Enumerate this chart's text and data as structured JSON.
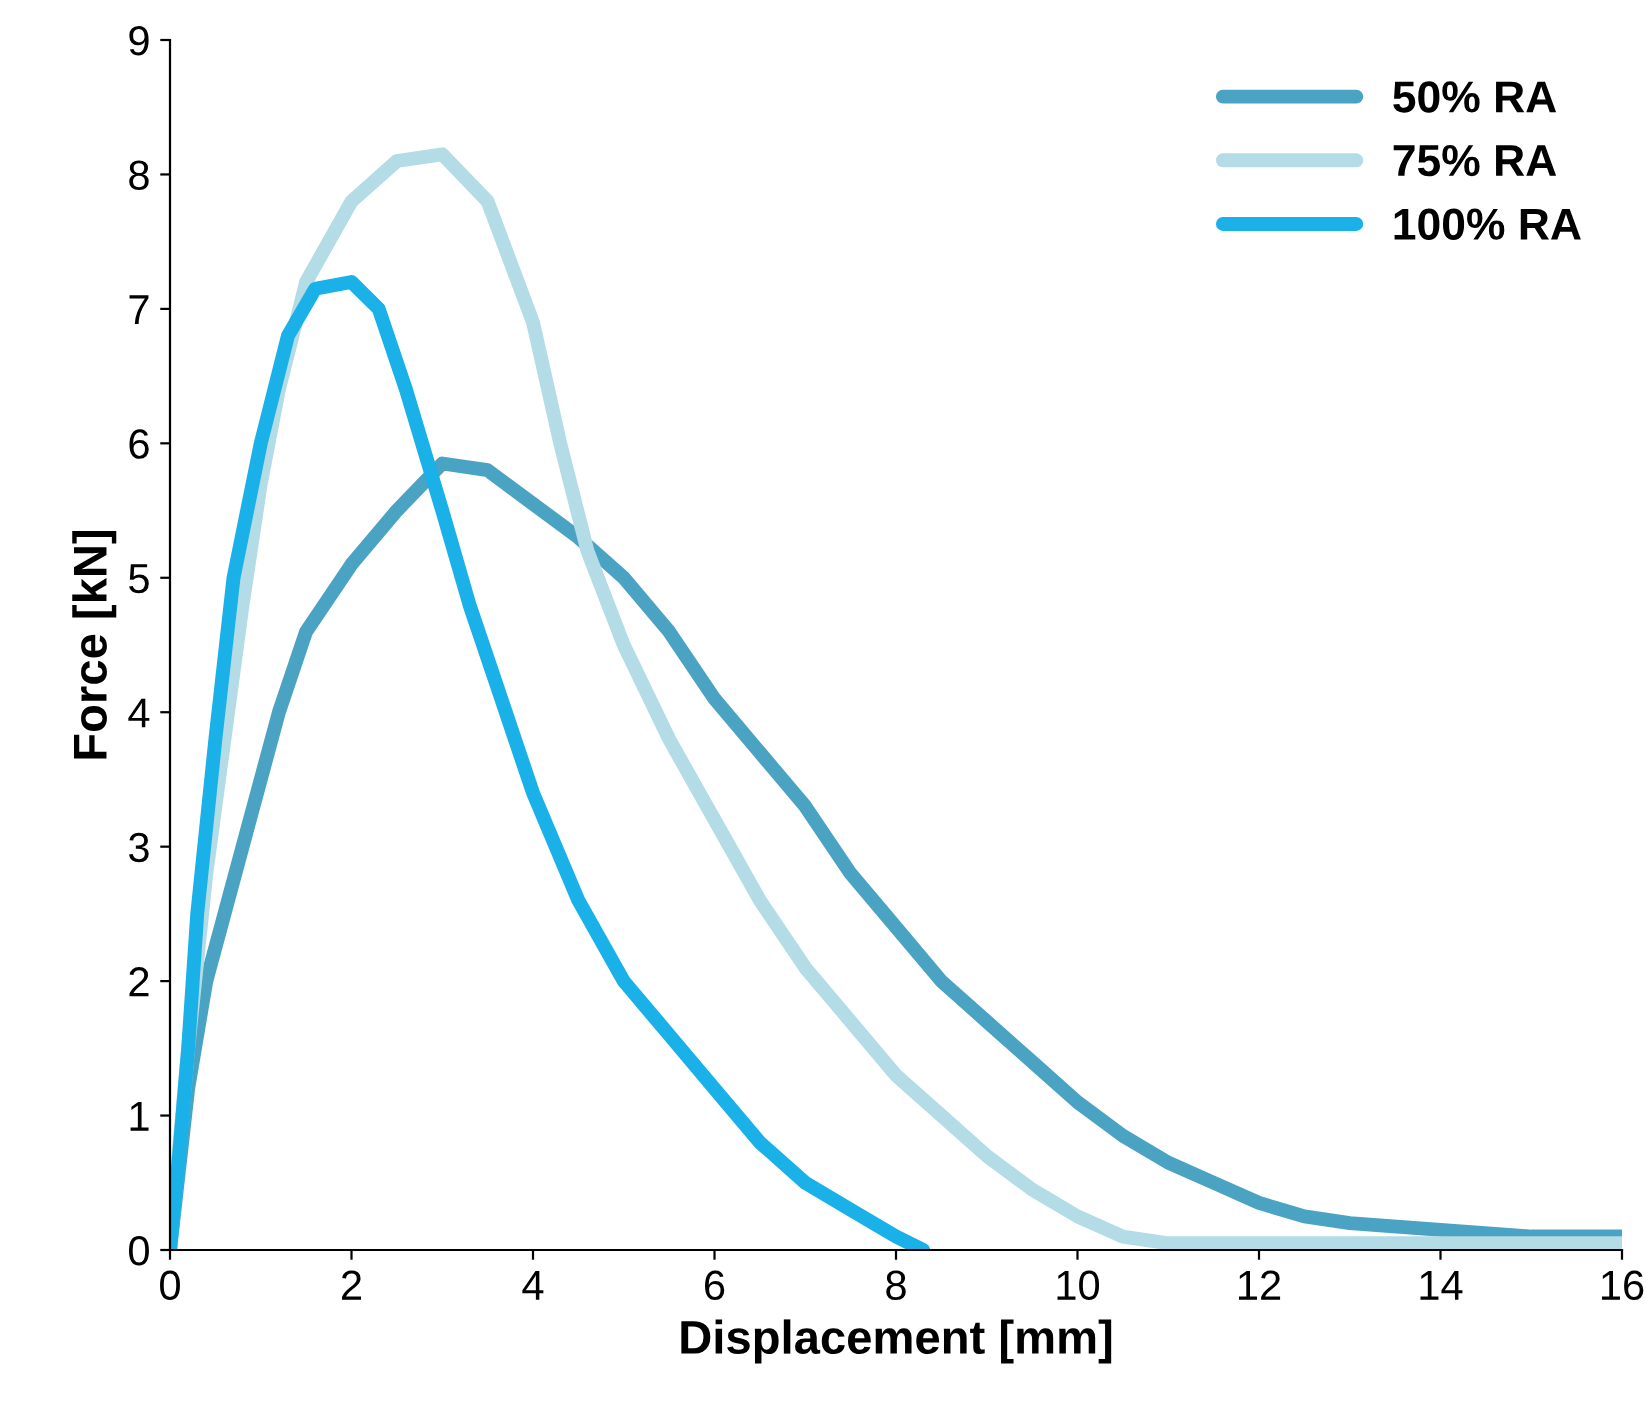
{
  "chart_data": {
    "type": "line",
    "xlabel": "Displacement [mm]",
    "ylabel": "Force [kN]",
    "xlim": [
      0,
      16
    ],
    "xticks": [
      0,
      2,
      4,
      6,
      8,
      10,
      12,
      14,
      16
    ],
    "ylim": [
      0,
      9
    ],
    "yticks": [
      0,
      1,
      2,
      3,
      4,
      5,
      6,
      7,
      8,
      9
    ],
    "grid": false,
    "legend": "top right",
    "marker": "none",
    "line_style": "solid",
    "series": [
      {
        "name": "50% RA",
        "color": "#4ba3c3",
        "x": [
          0,
          0.2,
          0.4,
          0.6,
          0.8,
          1.0,
          1.2,
          1.5,
          2,
          2.5,
          3,
          3.5,
          4,
          4.5,
          5,
          5.5,
          6,
          6.5,
          7,
          7.5,
          8,
          8.5,
          9,
          9.5,
          10,
          10.5,
          11,
          11.5,
          12,
          12.5,
          13,
          14,
          15,
          16
        ],
        "values": [
          0,
          1.2,
          2.0,
          2.5,
          3.0,
          3.5,
          4.0,
          4.6,
          5.1,
          5.5,
          5.85,
          5.8,
          5.55,
          5.3,
          5.0,
          4.6,
          4.1,
          3.7,
          3.3,
          2.8,
          2.4,
          2.0,
          1.7,
          1.4,
          1.1,
          0.85,
          0.65,
          0.5,
          0.35,
          0.25,
          0.2,
          0.15,
          0.1,
          0.1
        ]
      },
      {
        "name": "75% RA",
        "color": "#b3dce6",
        "x": [
          0,
          0.2,
          0.4,
          0.6,
          0.8,
          1.0,
          1.2,
          1.5,
          2,
          2.5,
          3,
          3.5,
          4,
          4.3,
          4.6,
          5,
          5.5,
          6,
          6.5,
          7,
          7.5,
          8,
          8.5,
          9,
          9.5,
          10,
          10.5,
          11,
          12,
          14,
          16
        ],
        "values": [
          0,
          1.5,
          2.8,
          3.8,
          4.8,
          5.7,
          6.4,
          7.2,
          7.8,
          8.1,
          8.15,
          7.8,
          6.9,
          6.0,
          5.2,
          4.5,
          3.8,
          3.2,
          2.6,
          2.1,
          1.7,
          1.3,
          1.0,
          0.7,
          0.45,
          0.25,
          0.1,
          0.05,
          0.05,
          0.05,
          0.05
        ]
      },
      {
        "name": "100% RA",
        "color": "#1ab0e8",
        "x": [
          0,
          0.1,
          0.2,
          0.3,
          0.5,
          0.7,
          1.0,
          1.3,
          1.6,
          2,
          2.3,
          2.6,
          3,
          3.3,
          3.6,
          4,
          4.5,
          5,
          5.5,
          6,
          6.5,
          7,
          7.5,
          8,
          8.3
        ],
        "values": [
          0,
          0.7,
          1.5,
          2.5,
          3.8,
          5.0,
          6.0,
          6.8,
          7.15,
          7.2,
          7.0,
          6.4,
          5.5,
          4.8,
          4.2,
          3.4,
          2.6,
          2.0,
          1.6,
          1.2,
          0.8,
          0.5,
          0.3,
          0.1,
          0.0
        ]
      }
    ]
  }
}
